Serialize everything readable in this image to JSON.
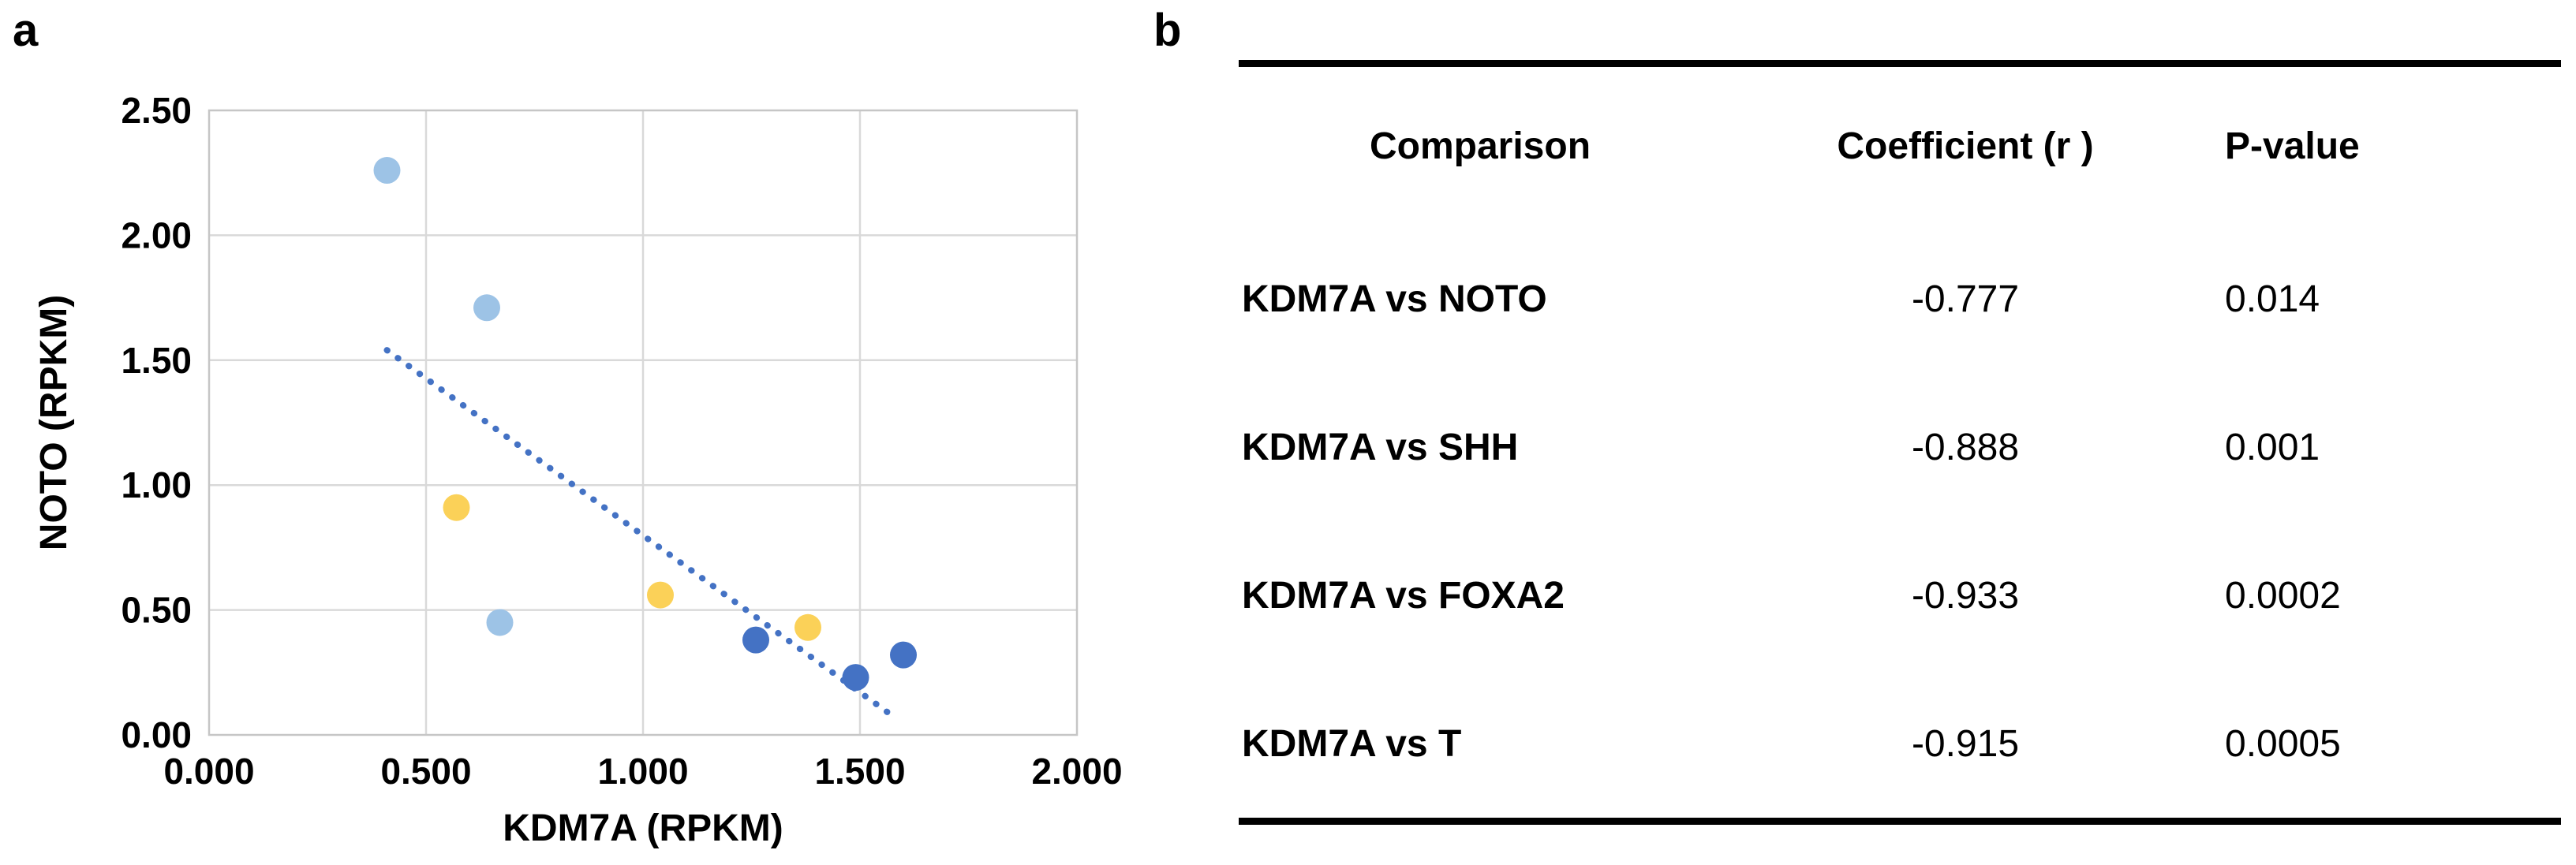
{
  "panel_a": {
    "label": "a"
  },
  "panel_b": {
    "label": "b",
    "table": {
      "headers": [
        "Comparison",
        "Coefficient (r )",
        "P-value"
      ],
      "rows": [
        {
          "comparison": "KDM7A vs NOTO",
          "coefficient": "-0.777",
          "p_value": "0.014"
        },
        {
          "comparison": "KDM7A vs SHH",
          "coefficient": "-0.888",
          "p_value": "0.001"
        },
        {
          "comparison": "KDM7A vs FOXA2",
          "coefficient": "-0.933",
          "p_value": "0.0002"
        },
        {
          "comparison": "KDM7A vs T",
          "coefficient": "-0.915",
          "p_value": "0.0005"
        }
      ],
      "rule_color": "#000000"
    }
  },
  "chart_data": {
    "type": "scatter",
    "title": "",
    "xlabel": "KDM7A (RPKM)",
    "ylabel": "NOTO (RPKM)",
    "xlim": [
      0,
      2
    ],
    "ylim": [
      0,
      2.5
    ],
    "x_ticks": [
      {
        "value": 0.0,
        "label": "0.000"
      },
      {
        "value": 0.5,
        "label": "0.500"
      },
      {
        "value": 1.0,
        "label": "1.000"
      },
      {
        "value": 1.5,
        "label": "1.500"
      },
      {
        "value": 2.0,
        "label": "2.000"
      }
    ],
    "y_ticks": [
      {
        "value": 0.0,
        "label": "0.00"
      },
      {
        "value": 0.5,
        "label": "0.50"
      },
      {
        "value": 1.0,
        "label": "1.00"
      },
      {
        "value": 1.5,
        "label": "1.50"
      },
      {
        "value": 2.0,
        "label": "2.00"
      },
      {
        "value": 2.5,
        "label": "2.50"
      }
    ],
    "grid": true,
    "grid_color": "#D9D9D9",
    "frame_color": "#C6C6C6",
    "legend": "none",
    "series": [
      {
        "name": "series-light-blue",
        "color": "#9DC3E6",
        "points": [
          {
            "x": 0.41,
            "y": 2.26
          },
          {
            "x": 0.64,
            "y": 1.71
          },
          {
            "x": 0.67,
            "y": 0.45
          }
        ]
      },
      {
        "name": "series-gold",
        "color": "#FBD158",
        "points": [
          {
            "x": 0.57,
            "y": 0.91
          },
          {
            "x": 1.04,
            "y": 0.56
          },
          {
            "x": 1.38,
            "y": 0.43
          }
        ]
      },
      {
        "name": "series-dark-blue",
        "color": "#4472C4",
        "points": [
          {
            "x": 1.26,
            "y": 0.38
          },
          {
            "x": 1.49,
            "y": 0.23
          },
          {
            "x": 1.6,
            "y": 0.32
          }
        ]
      }
    ],
    "trendline": {
      "style": "dotted",
      "color": "#4472C4",
      "from": {
        "x": 0.41,
        "y": 1.54
      },
      "to": {
        "x": 1.58,
        "y": 0.07
      }
    }
  }
}
